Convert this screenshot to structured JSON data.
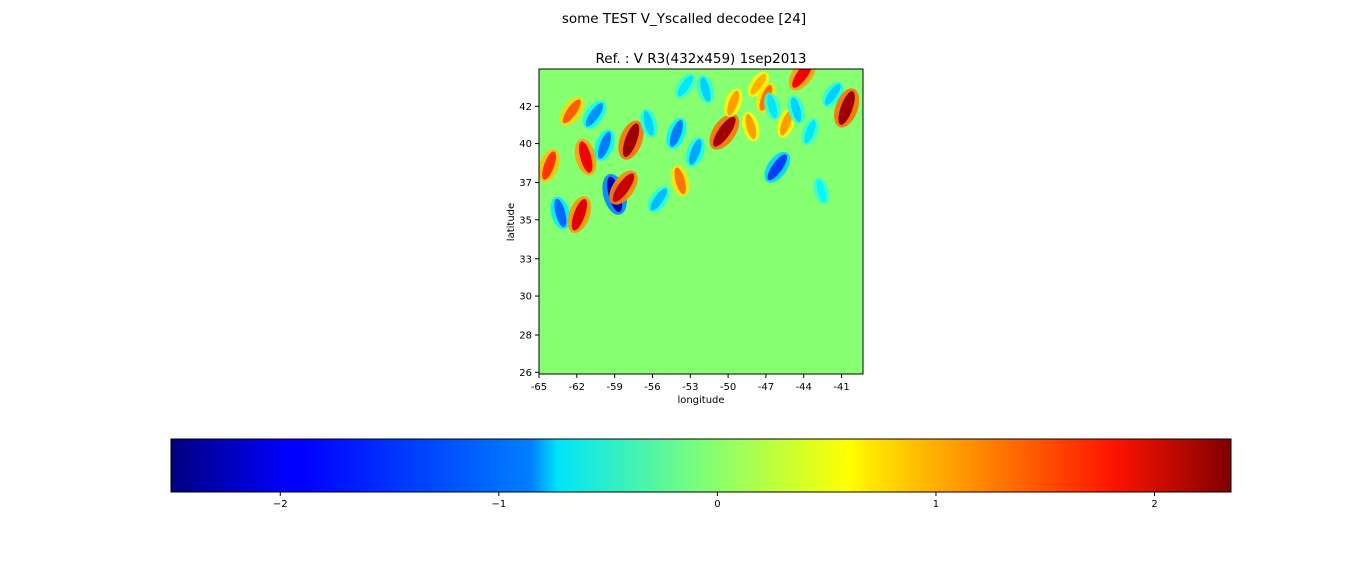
{
  "figure": {
    "suptitle": "some TEST V_Yscalled decodee [24]"
  },
  "chart_data": {
    "type": "heatmap",
    "title": "Ref. : V R3(432x459) 1sep2013",
    "xlabel": "longitude",
    "ylabel": "latitude",
    "xlim": [
      -65,
      -39.3
    ],
    "ylim": [
      26,
      44
    ],
    "xticks": [
      {
        "value": -65,
        "label": "-65"
      },
      {
        "value": -62,
        "label": "-62"
      },
      {
        "value": -59,
        "label": "-59"
      },
      {
        "value": -56,
        "label": "-56"
      },
      {
        "value": -53,
        "label": "-53"
      },
      {
        "value": -50,
        "label": "-50"
      },
      {
        "value": -47,
        "label": "-47"
      },
      {
        "value": -44,
        "label": "-44"
      },
      {
        "value": -41,
        "label": "-41"
      }
    ],
    "yticks": [
      {
        "value": 26.1,
        "label": "26"
      },
      {
        "value": 28.3,
        "label": "28"
      },
      {
        "value": 30.6,
        "label": "30"
      },
      {
        "value": 32.8,
        "label": "33"
      },
      {
        "value": 35.1,
        "label": "35"
      },
      {
        "value": 37.3,
        "label": "37"
      },
      {
        "value": 39.6,
        "label": "40"
      },
      {
        "value": 41.8,
        "label": "42"
      }
    ],
    "colormap": "jet",
    "colorbar": {
      "orientation": "horizontal",
      "range": [
        -2.5,
        2.35
      ],
      "ticks": [
        {
          "value": -2,
          "label": "−2"
        },
        {
          "value": -1,
          "label": "−1"
        },
        {
          "value": 0,
          "label": "0"
        },
        {
          "value": 1,
          "label": "1"
        },
        {
          "value": 2,
          "label": "2"
        }
      ]
    },
    "field_features": [
      {
        "lon": -64.2,
        "lat": 38.3,
        "value": 1.5
      },
      {
        "lon": -63.3,
        "lat": 35.5,
        "value": -1.4
      },
      {
        "lon": -62.4,
        "lat": 41.5,
        "value": 1.3
      },
      {
        "lon": -61.8,
        "lat": 35.4,
        "value": 1.9
      },
      {
        "lon": -61.3,
        "lat": 38.8,
        "value": 1.8
      },
      {
        "lon": -60.6,
        "lat": 41.3,
        "value": -1.2
      },
      {
        "lon": -59.8,
        "lat": 39.5,
        "value": -1.3
      },
      {
        "lon": -59.0,
        "lat": 36.6,
        "value": -2.3
      },
      {
        "lon": -58.3,
        "lat": 37.0,
        "value": 2.0
      },
      {
        "lon": -57.7,
        "lat": 39.8,
        "value": 2.2
      },
      {
        "lon": -56.3,
        "lat": 40.8,
        "value": -0.9
      },
      {
        "lon": -55.5,
        "lat": 36.3,
        "value": -1.0
      },
      {
        "lon": -54.1,
        "lat": 40.2,
        "value": -1.3
      },
      {
        "lon": -53.8,
        "lat": 37.4,
        "value": 1.2
      },
      {
        "lon": -53.4,
        "lat": 43.0,
        "value": -0.8
      },
      {
        "lon": -52.6,
        "lat": 39.1,
        "value": -1.1
      },
      {
        "lon": -51.8,
        "lat": 42.8,
        "value": -0.9
      },
      {
        "lon": -50.3,
        "lat": 40.3,
        "value": 2.2
      },
      {
        "lon": -49.6,
        "lat": 42.0,
        "value": 1.0
      },
      {
        "lon": -48.2,
        "lat": 40.6,
        "value": 1.0
      },
      {
        "lon": -47.6,
        "lat": 43.1,
        "value": 0.9
      },
      {
        "lon": -47.0,
        "lat": 42.3,
        "value": 1.2
      },
      {
        "lon": -46.5,
        "lat": 41.8,
        "value": -0.8
      },
      {
        "lon": -46.1,
        "lat": 38.2,
        "value": -1.6
      },
      {
        "lon": -45.4,
        "lat": 40.8,
        "value": 1.0
      },
      {
        "lon": -44.6,
        "lat": 41.6,
        "value": -0.9
      },
      {
        "lon": -44.1,
        "lat": 43.7,
        "value": 1.8
      },
      {
        "lon": -43.5,
        "lat": 40.3,
        "value": -0.8
      },
      {
        "lon": -42.6,
        "lat": 36.8,
        "value": -0.7
      },
      {
        "lon": -41.7,
        "lat": 42.5,
        "value": -0.9
      },
      {
        "lon": -40.6,
        "lat": 41.7,
        "value": 2.2
      }
    ]
  }
}
